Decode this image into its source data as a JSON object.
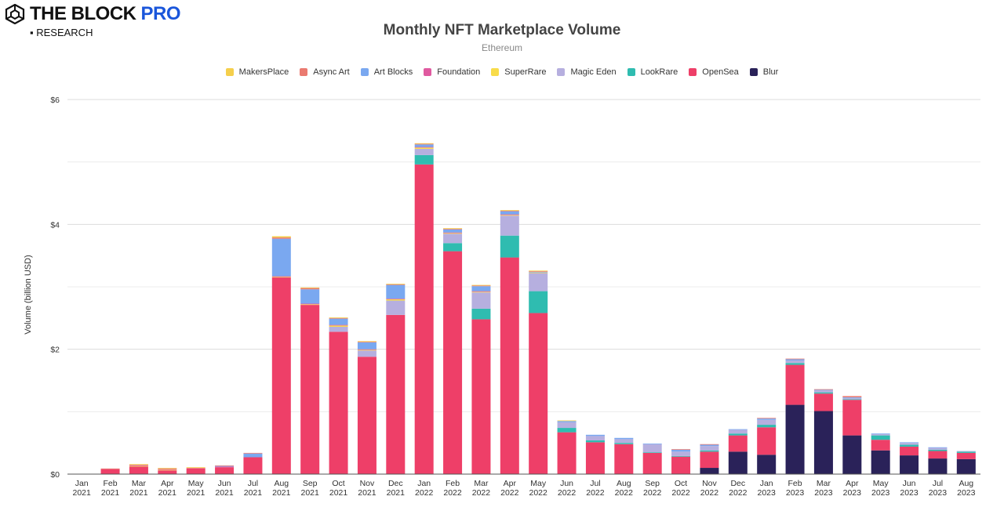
{
  "brand": {
    "name": "THE BLOCK",
    "pro": "PRO",
    "sub": "▪ RESEARCH"
  },
  "chart_data": {
    "type": "bar",
    "stacked": true,
    "title": "Monthly NFT Marketplace Volume",
    "subtitle": "Ethereum",
    "xlabel": "",
    "ylabel": "Volume (billion USD)",
    "ylim": [
      0,
      6
    ],
    "yticks": [
      0,
      2,
      4,
      6
    ],
    "ytick_labels": [
      "$0",
      "$2",
      "$4",
      "$6"
    ],
    "legend_position": "top-center",
    "categories": [
      [
        "Jan",
        "2021"
      ],
      [
        "Feb",
        "2021"
      ],
      [
        "Mar",
        "2021"
      ],
      [
        "Apr",
        "2021"
      ],
      [
        "May",
        "2021"
      ],
      [
        "Jun",
        "2021"
      ],
      [
        "Jul",
        "2021"
      ],
      [
        "Aug",
        "2021"
      ],
      [
        "Sep",
        "2021"
      ],
      [
        "Oct",
        "2021"
      ],
      [
        "Nov",
        "2021"
      ],
      [
        "Dec",
        "2021"
      ],
      [
        "Jan",
        "2022"
      ],
      [
        "Feb",
        "2022"
      ],
      [
        "Mar",
        "2022"
      ],
      [
        "Apr",
        "2022"
      ],
      [
        "May",
        "2022"
      ],
      [
        "Jun",
        "2022"
      ],
      [
        "Jul",
        "2022"
      ],
      [
        "Aug",
        "2022"
      ],
      [
        "Sep",
        "2022"
      ],
      [
        "Oct",
        "2022"
      ],
      [
        "Nov",
        "2022"
      ],
      [
        "Dec",
        "2022"
      ],
      [
        "Jan",
        "2023"
      ],
      [
        "Feb",
        "2023"
      ],
      [
        "Mar",
        "2023"
      ],
      [
        "Apr",
        "2023"
      ],
      [
        "May",
        "2023"
      ],
      [
        "Jun",
        "2023"
      ],
      [
        "Jul",
        "2023"
      ],
      [
        "Aug",
        "2023"
      ]
    ],
    "series": [
      {
        "name": "Blur",
        "color": "#2a2259",
        "values": [
          0,
          0,
          0,
          0,
          0,
          0,
          0,
          0,
          0,
          0,
          0,
          0,
          0,
          0,
          0,
          0,
          0,
          0,
          0,
          0,
          0,
          0,
          0.1,
          0.36,
          0.31,
          1.11,
          1.01,
          0.62,
          0.38,
          0.3,
          0.25,
          0.24
        ]
      },
      {
        "name": "OpenSea",
        "color": "#ee3f68",
        "values": [
          0,
          0.08,
          0.12,
          0.06,
          0.09,
          0.11,
          0.27,
          3.15,
          2.71,
          2.28,
          1.88,
          2.55,
          4.96,
          3.57,
          2.48,
          3.47,
          2.58,
          0.67,
          0.51,
          0.48,
          0.34,
          0.28,
          0.26,
          0.26,
          0.44,
          0.64,
          0.28,
          0.57,
          0.17,
          0.14,
          0.12,
          0.1
        ]
      },
      {
        "name": "LookRare",
        "color": "#2fbcb0",
        "values": [
          0,
          0,
          0,
          0,
          0,
          0,
          0,
          0,
          0,
          0,
          0,
          0,
          0.15,
          0.13,
          0.17,
          0.35,
          0.35,
          0.07,
          0.03,
          0.02,
          0.01,
          0.01,
          0.02,
          0.03,
          0.04,
          0.03,
          0.02,
          0.01,
          0.07,
          0.03,
          0.02,
          0.02
        ]
      },
      {
        "name": "Magic Eden",
        "color": "#b6afdf",
        "values": [
          0,
          0,
          0,
          0,
          0,
          0,
          0,
          0,
          0,
          0.08,
          0.1,
          0.23,
          0.1,
          0.15,
          0.26,
          0.32,
          0.29,
          0.09,
          0.07,
          0.06,
          0.13,
          0.07,
          0.07,
          0.06,
          0.08,
          0.04,
          0.03,
          0.02,
          0.02,
          0.03,
          0.03,
          0.01
        ]
      },
      {
        "name": "SuperRare",
        "color": "#f8dc4a",
        "values": [
          0,
          0,
          0.01,
          0.01,
          0,
          0,
          0,
          0.01,
          0.01,
          0.02,
          0.01,
          0.02,
          0.02,
          0.01,
          0.01,
          0.01,
          0.01,
          0,
          0,
          0,
          0,
          0,
          0,
          0,
          0,
          0,
          0,
          0,
          0,
          0,
          0,
          0
        ]
      },
      {
        "name": "Foundation",
        "color": "#e05aa0",
        "values": [
          0,
          0,
          0.01,
          0.01,
          0,
          0.01,
          0,
          0.01,
          0.01,
          0.01,
          0.01,
          0.01,
          0.01,
          0.01,
          0.01,
          0.01,
          0,
          0,
          0,
          0,
          0,
          0,
          0,
          0,
          0,
          0,
          0,
          0,
          0,
          0,
          0,
          0
        ]
      },
      {
        "name": "Art Blocks",
        "color": "#7aa8f0",
        "values": [
          0,
          0,
          0,
          0,
          0,
          0.01,
          0.06,
          0.6,
          0.23,
          0.1,
          0.11,
          0.22,
          0.04,
          0.05,
          0.08,
          0.05,
          0.01,
          0.02,
          0.02,
          0.02,
          0.01,
          0.03,
          0.02,
          0.01,
          0.02,
          0.02,
          0.01,
          0.01,
          0.01,
          0.01,
          0.01,
          0
        ]
      },
      {
        "name": "Async Art",
        "color": "#ea7a70",
        "values": [
          0,
          0.01,
          0.01,
          0.01,
          0.01,
          0.01,
          0.01,
          0.02,
          0.02,
          0.01,
          0.01,
          0.01,
          0.01,
          0.01,
          0.01,
          0.01,
          0.01,
          0,
          0,
          0,
          0,
          0.01,
          0.01,
          0,
          0.01,
          0.01,
          0.01,
          0.02,
          0,
          0,
          0,
          0
        ]
      },
      {
        "name": "MakersPlace",
        "color": "#f5cf4c",
        "values": [
          0,
          0,
          0.01,
          0.01,
          0.01,
          0,
          0,
          0.02,
          0.01,
          0.01,
          0.01,
          0.01,
          0.01,
          0.01,
          0.01,
          0.01,
          0.01,
          0.01,
          0,
          0,
          0,
          0,
          0,
          0,
          0,
          0,
          0,
          0,
          0,
          0,
          0,
          0
        ]
      }
    ]
  },
  "legend_order": [
    "MakersPlace",
    "Async Art",
    "Art Blocks",
    "Foundation",
    "SuperRare",
    "Magic Eden",
    "LookRare",
    "OpenSea",
    "Blur"
  ]
}
